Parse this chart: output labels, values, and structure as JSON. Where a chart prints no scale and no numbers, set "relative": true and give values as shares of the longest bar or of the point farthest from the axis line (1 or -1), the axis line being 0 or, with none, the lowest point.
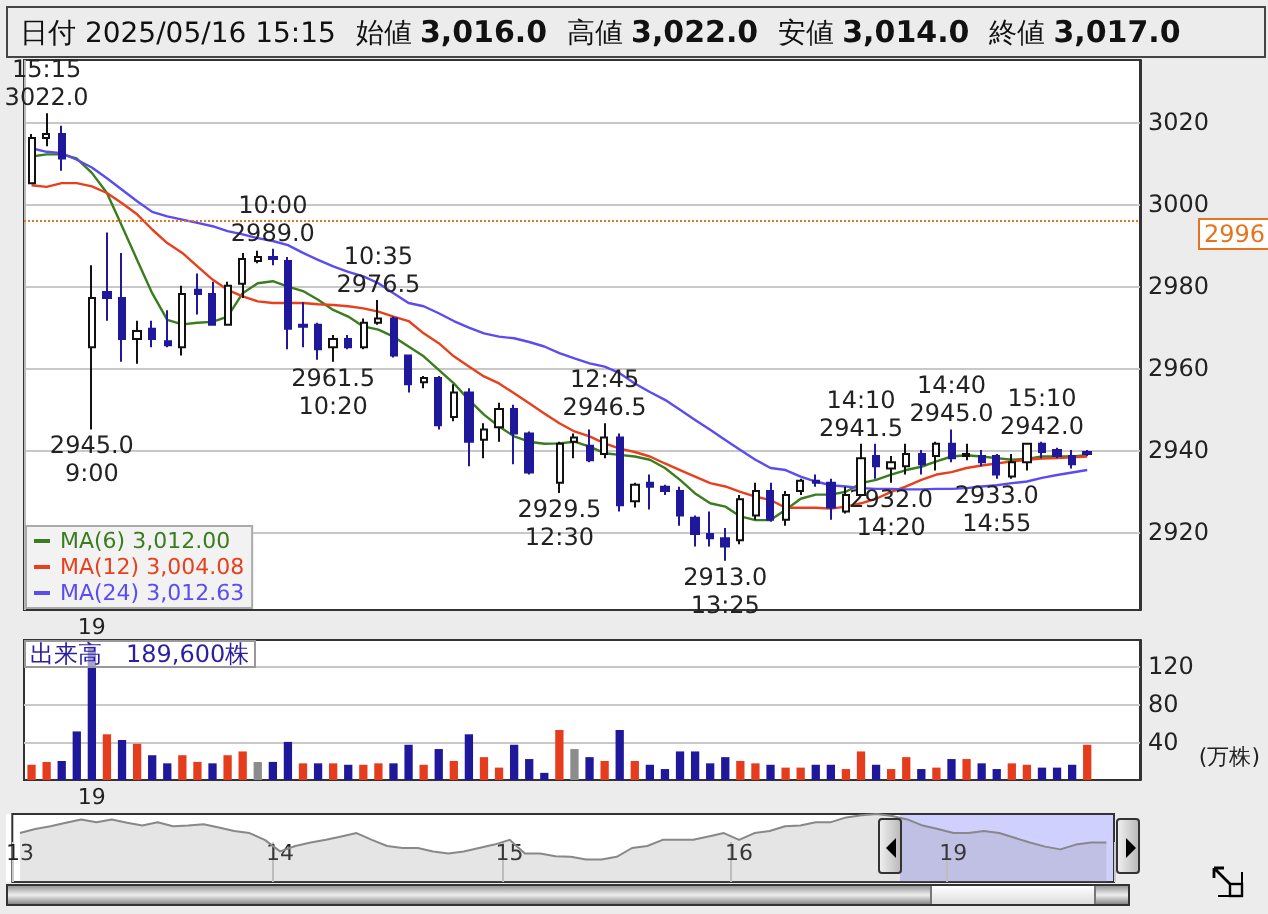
{
  "chart_data": [
    {
      "type": "candlestick",
      "title": "日付 2025/05/16 15:15",
      "annotations": [
        "始値 3,016.0",
        "高値 3,022.0",
        "安値 3,014.0",
        "終値 3,017.0",
        {
          "text": "15:15\n3022.0",
          "y": 3022
        },
        {
          "text": "2945.0\n9:00",
          "y": 2945
        },
        {
          "text": "10:00\n2989.0",
          "y": 2989
        },
        {
          "text": "2961.5\n10:20",
          "y": 2961.5
        },
        {
          "text": "10:35\n2976.5",
          "y": 2976.5
        },
        {
          "text": "2929.5\n12:30",
          "y": 2929.5
        },
        {
          "text": "12:45\n2946.5",
          "y": 2946.5
        },
        {
          "text": "2913.0\n13:25",
          "y": 2913
        },
        {
          "text": "14:10\n2941.5",
          "y": 2941.5
        },
        {
          "text": "2932.0\n14:20",
          "y": 2932
        },
        {
          "text": "14:40\n2945.0",
          "y": 2945
        },
        {
          "text": "2933.0\n14:55",
          "y": 2933
        },
        {
          "text": "15:10\n2942.0",
          "y": 2942
        }
      ],
      "categories": [
        null,
        null,
        null,
        null,
        "19",
        null,
        null,
        null,
        null,
        null,
        null,
        null,
        null,
        null,
        null,
        null,
        null,
        null,
        null,
        null,
        null,
        null,
        null,
        null,
        null,
        null,
        null,
        null,
        null,
        null,
        null,
        null,
        null,
        null,
        null,
        null,
        null,
        null,
        null,
        null,
        null,
        null,
        null,
        null,
        null,
        null,
        null,
        null,
        null,
        null,
        null,
        null,
        null,
        null,
        null,
        null,
        null,
        null,
        null,
        null,
        null,
        null,
        null,
        null,
        null,
        null,
        null,
        null,
        null,
        null,
        null
      ],
      "ohlc": [
        [
          3005,
          3017,
          3005,
          3016
        ],
        [
          3016,
          3022,
          3014,
          3017
        ],
        [
          3017,
          3019,
          3008,
          3011
        ],
        null,
        [
          2965,
          2985,
          2945,
          2977
        ],
        [
          2978.5,
          2993,
          2971.5,
          2977
        ],
        [
          2977,
          2988,
          2961.5,
          2967
        ],
        [
          2967,
          2971.5,
          2961,
          2969
        ],
        [
          2969.5,
          2971.5,
          2965,
          2967
        ],
        [
          2966.5,
          2974,
          2965,
          2965.5
        ],
        [
          2965,
          2980,
          2963,
          2978
        ],
        [
          2979,
          2983,
          2973,
          2978
        ],
        [
          2978,
          2981,
          2970.5,
          2970.5
        ],
        [
          2970.5,
          2981,
          2970.5,
          2980
        ],
        [
          2980.5,
          2988,
          2977,
          2986.5
        ],
        [
          2986,
          2988.5,
          2985.5,
          2987
        ],
        [
          2987,
          2989,
          2985,
          2986.5
        ],
        [
          2986,
          2987,
          2964.5,
          2969.5
        ],
        [
          2970.5,
          2976,
          2965,
          2970
        ],
        [
          2970.5,
          2971,
          2962,
          2964.5
        ],
        [
          2965,
          2968,
          2961.5,
          2967
        ],
        [
          2967,
          2968,
          2964.5,
          2965
        ],
        [
          2965,
          2972,
          2964.5,
          2971
        ],
        [
          2971,
          2976.5,
          2970.5,
          2972
        ],
        [
          2972,
          2972.5,
          2962.5,
          2963
        ],
        [
          2963,
          2963,
          2954,
          2956
        ],
        [
          2956.5,
          2958,
          2955,
          2957.5
        ],
        [
          2957.5,
          2958,
          2945,
          2946
        ],
        [
          2948,
          2956,
          2947,
          2954
        ],
        [
          2954,
          2955,
          2936,
          2942
        ],
        [
          2942.5,
          2946.5,
          2938,
          2945
        ],
        [
          2945.5,
          2951.5,
          2942,
          2950
        ],
        [
          2950,
          2951,
          2936.5,
          2944
        ],
        [
          2944,
          2944.5,
          2934,
          2934.5
        ],
        null,
        [
          2932,
          2942,
          2929.5,
          2941.5
        ],
        [
          2942,
          2944,
          2938,
          2943
        ],
        [
          2941,
          2945,
          2937,
          2937.5
        ],
        [
          2939,
          2946.5,
          2938,
          2943
        ],
        [
          2943,
          2944,
          2925,
          2926.5
        ],
        [
          2927.5,
          2932,
          2926,
          2931.5
        ],
        [
          2932,
          2934,
          2925.5,
          2931
        ],
        [
          2931,
          2931.5,
          2929,
          2930
        ],
        [
          2930,
          2931,
          2921.5,
          2924
        ],
        [
          2923.5,
          2924,
          2916.5,
          2919.5
        ],
        [
          2919.5,
          2925,
          2916.5,
          2918.5
        ],
        [
          2918.5,
          2921,
          2913,
          2916.5
        ],
        [
          2918,
          2929,
          2917,
          2928
        ],
        [
          2924,
          2932,
          2923,
          2930
        ],
        [
          2930,
          2932,
          2922.5,
          2923
        ],
        [
          2923,
          2930,
          2921.5,
          2929
        ],
        [
          2930,
          2933,
          2929,
          2932.5
        ],
        [
          2932.5,
          2934,
          2931,
          2932
        ],
        [
          2932,
          2933,
          2923,
          2926
        ],
        [
          2925,
          2931,
          2924.5,
          2929
        ],
        [
          2929,
          2941.5,
          2929,
          2938
        ],
        [
          2938.5,
          2941.5,
          2933,
          2936
        ],
        [
          2935.5,
          2938.5,
          2932,
          2937
        ],
        [
          2936,
          2941.5,
          2934,
          2939
        ],
        [
          2939,
          2940,
          2934,
          2936.5
        ],
        [
          2938.5,
          2942,
          2935,
          2941.5
        ],
        [
          2941.5,
          2945,
          2937,
          2938
        ],
        [
          2938.5,
          2941.5,
          2937.5,
          2939
        ],
        [
          2938.5,
          2940,
          2936,
          2937
        ],
        [
          2938.5,
          2939,
          2933,
          2934
        ],
        [
          2933.5,
          2939,
          2933,
          2937
        ],
        [
          2937,
          2941.5,
          2935,
          2941.5
        ],
        [
          2941.5,
          2942,
          2938,
          2939.5
        ],
        [
          2940,
          2940.5,
          2938,
          2938.5
        ],
        [
          2938.5,
          2940,
          2935.5,
          2936.5
        ],
        [
          2939.5,
          2940,
          2938.5,
          2939
        ]
      ],
      "series": [
        {
          "type": "line",
          "name": "MA(6) 3,012.00",
          "color": "#3a7d1e",
          "values": [
            3011.5,
            3012.0,
            3012,
            3011,
            3007.5,
            3002.6,
            2994.5,
            2986.3,
            2978.2,
            2971.7,
            2970.6,
            2971,
            2971.2,
            2972.5,
            2978.2,
            2980.6,
            2981.1,
            2979.8,
            2978.7,
            2976.6,
            2974.1,
            2972.5,
            2970.1,
            2969.3,
            2967.6,
            2965.2,
            2962.8,
            2959.5,
            2956.2,
            2952.2,
            2948.6,
            2945.7,
            2943.3,
            2942,
            2941.5,
            2941.6,
            2942,
            2940.8,
            2939.2,
            2938.8,
            2938.4,
            2937.6,
            2935.6,
            2932.7,
            2929.4,
            2927,
            2926.2,
            2923.8,
            2922.9,
            2922.9,
            2925.4,
            2928.1,
            2929.1,
            2929.1,
            2929.8,
            2931.9,
            2932.7,
            2934,
            2935.1,
            2935.9,
            2937.2,
            2938.4,
            2938.7,
            2938.4,
            2938,
            2937.6,
            2937.8,
            2938.4,
            2938.4,
            2938.4,
            2938.7
          ]
        },
        {
          "type": "line",
          "name": "MA(12) 3,004.08",
          "color": "#e8401c",
          "values": [
            3004.5,
            3004.08,
            3005,
            3005,
            3004.2,
            3002.6,
            3000.1,
            2997.4,
            2993.7,
            2990.4,
            2988,
            2984.7,
            2981.5,
            2979,
            2977.4,
            2976.2,
            2975.8,
            2975.8,
            2975.8,
            2975.5,
            2975.3,
            2975,
            2974.5,
            2973.7,
            2972.5,
            2971.4,
            2968.4,
            2966,
            2962.8,
            2960.3,
            2957.9,
            2956.2,
            2953.8,
            2951.4,
            2948.9,
            2946.5,
            2944.5,
            2943.3,
            2941.6,
            2940.3,
            2939.5,
            2938.4,
            2936.7,
            2935.1,
            2933.5,
            2931.9,
            2931.1,
            2929.8,
            2928.6,
            2927.8,
            2925.9,
            2925.9,
            2925.9,
            2925.7,
            2926.2,
            2927,
            2928.1,
            2929.8,
            2931.1,
            2932.7,
            2934,
            2934.6,
            2935.6,
            2936.2,
            2936.7,
            2937.2,
            2937.6,
            2937.9,
            2938,
            2938.2,
            2938.4
          ]
        },
        {
          "type": "line",
          "name": "MA(24) 3,012.63",
          "color": "#5a4cf0",
          "values": [
            3013.5,
            3012.63,
            3012.3,
            3010.7,
            3008.8,
            3006.2,
            3003.4,
            3000.6,
            2998,
            2996.9,
            2996.1,
            2995.3,
            2994.5,
            2993.3,
            2992.5,
            2991.6,
            2990.9,
            2989.9,
            2988,
            2986.3,
            2984.7,
            2983.4,
            2982.3,
            2980.6,
            2978.2,
            2975.8,
            2975,
            2973.3,
            2971.4,
            2969.8,
            2968.4,
            2967.6,
            2967.2,
            2966.3,
            2965.2,
            2963.6,
            2962.3,
            2961.1,
            2960.3,
            2958.7,
            2956.2,
            2954.1,
            2952.2,
            2949.8,
            2947.3,
            2944.9,
            2942.4,
            2940,
            2937.6,
            2935.6,
            2935.1,
            2933.5,
            2932.3,
            2931.4,
            2931.1,
            2930.7,
            2930.5,
            2930.5,
            2930.4,
            2930.4,
            2930.5,
            2930.5,
            2930.7,
            2931.1,
            2931.4,
            2931.9,
            2932.3,
            2933.2,
            2933.9,
            2934.5,
            2935.1
          ]
        }
      ],
      "ylim": [
        2901,
        3035
      ],
      "yticks": [
        2920,
        2940,
        2960,
        2980,
        3000,
        3020
      ],
      "ref_lines": [
        {
          "axis": "y",
          "value": 2996,
          "label": "2996",
          "color": "#e8731e",
          "line_style": "dotted"
        }
      ],
      "grid": true,
      "legend": "bottom left",
      "marker": "none"
    },
    {
      "type": "bar",
      "title": "出来高　189,600株",
      "ylabel": "(万株)",
      "categories": [
        null,
        null,
        null,
        null,
        "19",
        null,
        null,
        null,
        null,
        null,
        null,
        null,
        null,
        null,
        null,
        null,
        null,
        null,
        null,
        null,
        null,
        null,
        null,
        null,
        null,
        null,
        null,
        null,
        null,
        null,
        null,
        null,
        null,
        null,
        null,
        null,
        null,
        null,
        null,
        null,
        null,
        null,
        null,
        null,
        null,
        null,
        null,
        null,
        null,
        null,
        null,
        null,
        null,
        null,
        null,
        null,
        null,
        null,
        null,
        null,
        null,
        null,
        null,
        null,
        null,
        null,
        null,
        null,
        null,
        null,
        null
      ],
      "values": [
        16,
        18.96,
        20,
        51,
        140,
        48,
        42,
        38,
        26,
        17.5,
        26,
        19,
        17.5,
        26,
        30,
        19,
        19,
        40,
        17.5,
        17.5,
        17.5,
        16,
        16,
        17.5,
        17.5,
        37,
        16,
        32.5,
        20,
        48,
        24,
        13,
        37,
        22,
        7.5,
        52.5,
        32.5,
        24,
        20,
        52.5,
        20,
        16,
        11.5,
        30,
        30,
        17.5,
        24,
        20,
        17.5,
        16,
        13,
        13,
        16,
        16,
        11.5,
        30,
        16,
        11.5,
        24,
        11.5,
        13,
        22,
        22,
        17.5,
        11.5,
        17.5,
        16,
        13,
        13,
        16,
        37
      ],
      "colors": [
        "#e63c1e",
        "#e63c1e",
        "#20189a",
        "#20189a",
        "#20189a",
        "#e63c1e",
        "#20189a",
        "#e63c1e",
        "#20189a",
        "#20189a",
        "#e63c1e",
        "#e63c1e",
        "#20189a",
        "#e63c1e",
        "#e63c1e",
        "#8c8c8c",
        "#20189a",
        "#20189a",
        "#e63c1e",
        "#20189a",
        "#e63c1e",
        "#20189a",
        "#e63c1e",
        "#e63c1e",
        "#20189a",
        "#20189a",
        "#e63c1e",
        "#20189a",
        "#e63c1e",
        "#20189a",
        "#e63c1e",
        "#e63c1e",
        "#20189a",
        "#20189a",
        "#20189a",
        "#e63c1e",
        "#8c8c8c",
        "#20189a",
        "#e63c1e",
        "#20189a",
        "#e63c1e",
        "#20189a",
        "#20189a",
        "#20189a",
        "#20189a",
        "#20189a",
        "#20189a",
        "#e63c1e",
        "#e63c1e",
        "#20189a",
        "#e63c1e",
        "#e63c1e",
        "#20189a",
        "#20189a",
        "#e63c1e",
        "#e63c1e",
        "#20189a",
        "#e63c1e",
        "#e63c1e",
        "#20189a",
        "#e63c1e",
        "#20189a",
        "#e63c1e",
        "#20189a",
        "#20189a",
        "#e63c1e",
        "#e63c1e",
        "#20189a",
        "#20189a",
        "#20189a",
        "#e63c1e"
      ],
      "ylim": [
        0,
        147
      ],
      "yticks": [
        40,
        80,
        120
      ],
      "grid": "y"
    },
    {
      "type": "area",
      "relative": true,
      "color": "#888888",
      "categories": [
        "13",
        null,
        null,
        null,
        null,
        null,
        null,
        null,
        null,
        null,
        null,
        null,
        null,
        null,
        null,
        null,
        null,
        "14",
        null,
        null,
        null,
        null,
        null,
        null,
        null,
        null,
        null,
        null,
        null,
        null,
        null,
        null,
        "15",
        null,
        null,
        null,
        null,
        null,
        null,
        null,
        null,
        null,
        null,
        null,
        null,
        null,
        null,
        "16",
        null,
        null,
        null,
        null,
        null,
        null,
        null,
        null,
        null,
        null,
        null,
        null,
        null,
        "19",
        null,
        null,
        null,
        null,
        null,
        null,
        null,
        null,
        null,
        null
      ],
      "values": [
        0.72,
        0.78,
        0.82,
        0.87,
        0.92,
        0.88,
        0.92,
        0.87,
        0.83,
        0.88,
        0.82,
        0.83,
        0.85,
        0.8,
        0.75,
        0.72,
        0.62,
        0.45,
        0.53,
        0.58,
        0.62,
        0.67,
        0.72,
        0.62,
        0.53,
        0.5,
        0.5,
        0.45,
        0.42,
        0.45,
        0.5,
        0.55,
        0.62,
        0.42,
        0.42,
        0.38,
        0.37,
        0.33,
        0.33,
        0.37,
        0.5,
        0.53,
        0.62,
        0.62,
        0.62,
        0.67,
        0.72,
        0.62,
        0.72,
        0.75,
        0.82,
        0.83,
        0.88,
        0.88,
        0.95,
        0.98,
        1,
        0.97,
        0.92,
        0.83,
        0.78,
        0.72,
        0.72,
        0.75,
        0.72,
        0.65,
        0.58,
        0.52,
        0.48,
        0.55,
        0.58,
        0.58
      ]
    }
  ]
}
